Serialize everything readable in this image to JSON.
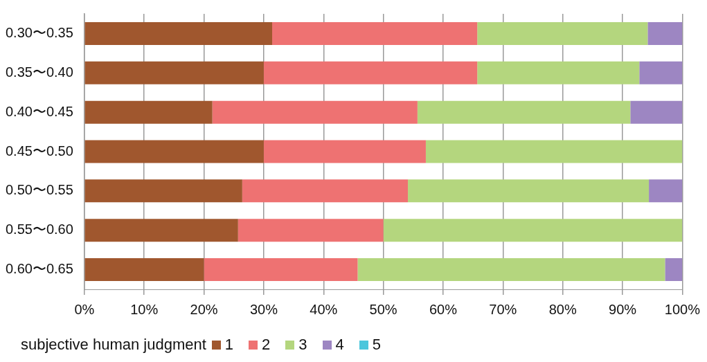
{
  "chart_data": {
    "type": "bar",
    "orientation": "horizontal",
    "stacked": true,
    "categories": [
      "0.30〜0.35",
      "0.35〜0.40",
      "0.40〜0.45",
      "0.45〜0.50",
      "0.50〜0.55",
      "0.55〜0.60",
      "0.60〜0.65"
    ],
    "series": [
      {
        "name": "1",
        "color": "#a0572e",
        "values": [
          31.4,
          30.0,
          21.4,
          30.0,
          26.4,
          25.7,
          20.0
        ]
      },
      {
        "name": "2",
        "color": "#ee7272",
        "values": [
          34.3,
          35.7,
          34.3,
          27.1,
          27.7,
          24.3,
          25.7
        ]
      },
      {
        "name": "3",
        "color": "#b4d67e",
        "values": [
          28.5,
          27.1,
          35.6,
          42.9,
          40.3,
          50.0,
          51.4
        ]
      },
      {
        "name": "4",
        "color": "#9d86c2",
        "values": [
          5.8,
          7.2,
          8.7,
          0,
          5.6,
          0,
          2.9
        ]
      },
      {
        "name": "5",
        "color": "#4bc6dc",
        "values": [
          0,
          0,
          0,
          0,
          0,
          0,
          0
        ]
      }
    ],
    "xlim": [
      0,
      100
    ],
    "xticks": [
      {
        "value": 0,
        "label": "0%"
      },
      {
        "value": 10,
        "label": "10%"
      },
      {
        "value": 20,
        "label": "20%"
      },
      {
        "value": 30,
        "label": "30%"
      },
      {
        "value": 40,
        "label": "40%"
      },
      {
        "value": 50,
        "label": "50%"
      },
      {
        "value": 60,
        "label": "60%"
      },
      {
        "value": 70,
        "label": "70%"
      },
      {
        "value": 80,
        "label": "80%"
      },
      {
        "value": 90,
        "label": "90%"
      },
      {
        "value": 100,
        "label": "100%"
      }
    ],
    "grid": "x",
    "legend": "bottom",
    "legend_title": "subjective human judgment"
  }
}
